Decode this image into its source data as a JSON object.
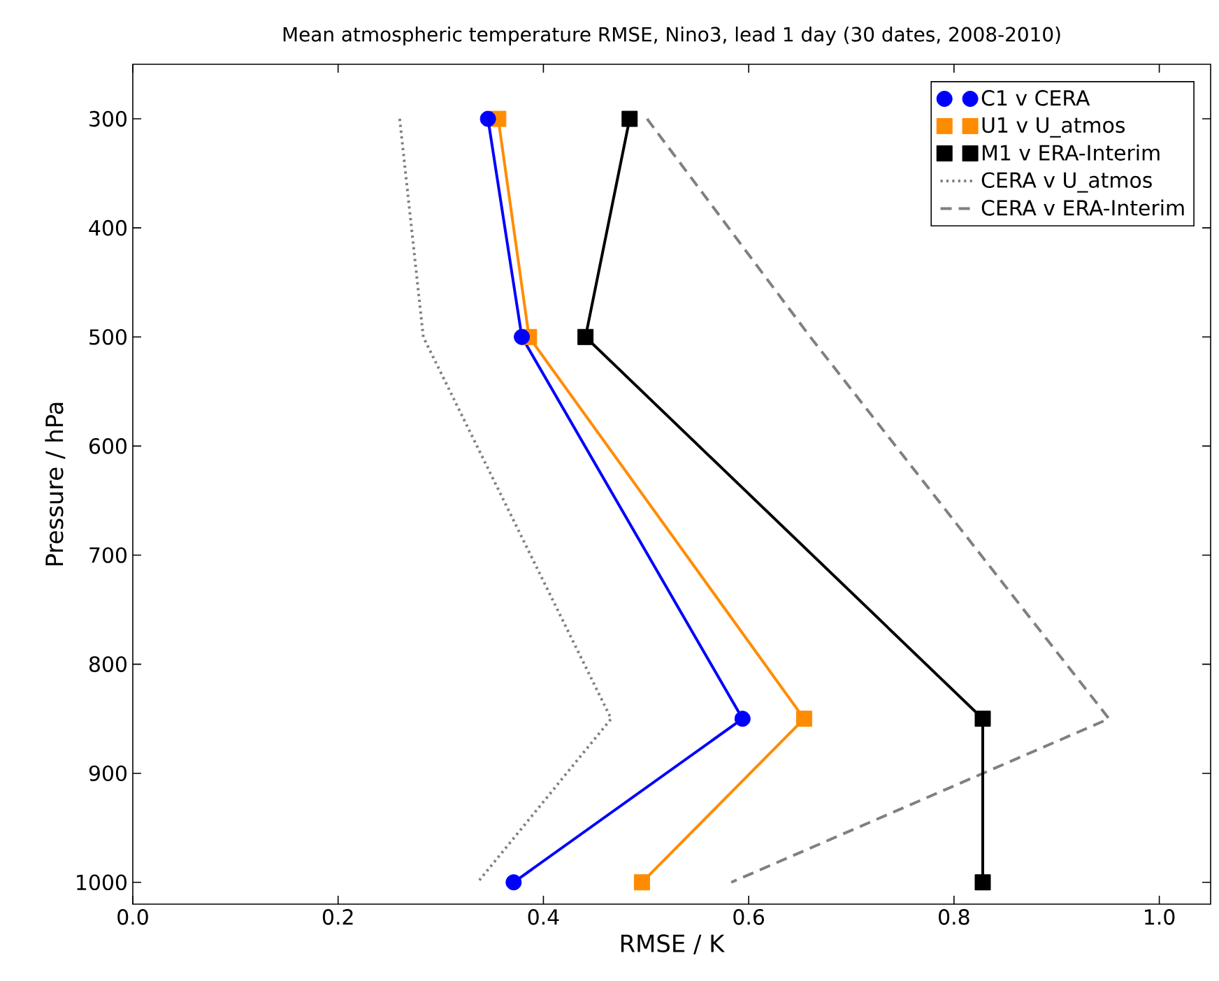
{
  "chart_data": {
    "type": "line",
    "title": "Mean atmospheric temperature RMSE, Nino3, lead 1 day (30 dates, 2008-2010)",
    "xlabel": "RMSE / K",
    "ylabel": "Pressure / hPa",
    "xlim": [
      0,
      1.05
    ],
    "ylim": [
      1020,
      250
    ],
    "xticks": [
      {
        "value": 0,
        "label": "0.0"
      },
      {
        "value": 0.2,
        "label": "0.2"
      },
      {
        "value": 0.4,
        "label": "0.4"
      },
      {
        "value": 0.6,
        "label": "0.6"
      },
      {
        "value": 0.8,
        "label": "0.8"
      },
      {
        "value": 1.0,
        "label": "1.0"
      }
    ],
    "yticks": [
      300,
      400,
      500,
      600,
      700,
      800,
      900,
      1000
    ],
    "grid": false,
    "legend": "top right",
    "series": [
      {
        "name": "C1 v CERA",
        "color": "#0000ff",
        "marker": "circle",
        "line_style": "solid",
        "x": [
          0.346,
          0.379,
          0.594,
          0.371
        ],
        "values": [
          300,
          500,
          850,
          1000
        ]
      },
      {
        "name": "U1 v U_atmos",
        "color": "#ff8c00",
        "marker": "square",
        "line_style": "solid",
        "x": [
          0.356,
          0.386,
          0.654,
          0.496
        ],
        "values": [
          300,
          500,
          850,
          1000
        ]
      },
      {
        "name": "M1 v ERA-Interim",
        "color": "#000000",
        "marker": "square",
        "line_style": "solid",
        "x": [
          0.484,
          0.441,
          0.828,
          0.828
        ],
        "values": [
          300,
          500,
          850,
          1000
        ]
      },
      {
        "name": "CERA v U_atmos",
        "color": "#808080",
        "marker": "none",
        "line_style": "dotted",
        "x": [
          0.26,
          0.283,
          0.466,
          0.336
        ],
        "values": [
          300,
          500,
          850,
          1000
        ]
      },
      {
        "name": "CERA v ERA-Interim",
        "color": "#808080",
        "marker": "none",
        "line_style": "dashed",
        "x": [
          0.501,
          0.66,
          0.951,
          0.583
        ],
        "values": [
          300,
          500,
          850,
          1000
        ]
      }
    ]
  }
}
